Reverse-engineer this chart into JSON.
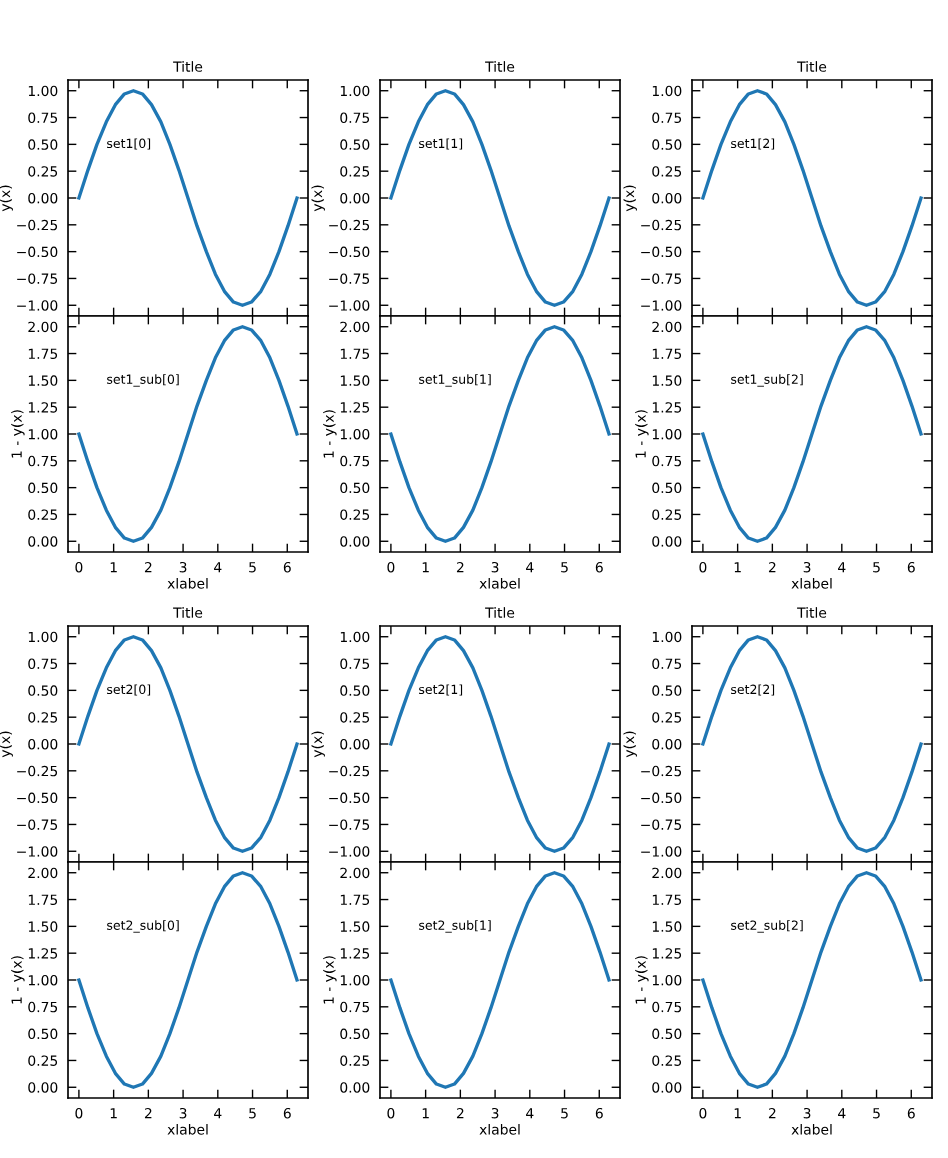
{
  "chart_data": [
    {
      "type": "line",
      "title": "Title",
      "ylabel": "y(x)",
      "annotations": [
        "set1[0]"
      ],
      "xlim": [
        -0.314,
        6.597
      ],
      "ylim": [
        -1.1,
        1.1
      ],
      "xticks": [
        0,
        1,
        2,
        3,
        4,
        5,
        6
      ],
      "yticks": [
        {
          "value": -1,
          "label": "−1.00"
        },
        {
          "value": -0.75,
          "label": "−0.75"
        },
        {
          "value": -0.5,
          "label": "−0.50"
        },
        {
          "value": -0.25,
          "label": "−0.25"
        },
        {
          "value": 0,
          "label": "0.00"
        },
        {
          "value": 0.25,
          "label": "0.25"
        },
        {
          "value": 0.5,
          "label": "0.50"
        },
        {
          "value": 0.75,
          "label": "0.75"
        },
        {
          "value": 1,
          "label": "1.00"
        }
      ],
      "tick_labels": "y",
      "x": [
        0,
        0.26,
        0.52,
        0.79,
        1.05,
        1.31,
        1.57,
        1.83,
        2.09,
        2.36,
        2.62,
        2.88,
        3.14,
        3.4,
        3.67,
        3.93,
        4.19,
        4.45,
        4.71,
        4.97,
        5.24,
        5.5,
        5.76,
        6.02,
        6.28
      ],
      "series": [
        {
          "color": "#1f77b4",
          "values": [
            0,
            0.26,
            0.5,
            0.71,
            0.87,
            0.97,
            1,
            0.97,
            0.87,
            0.71,
            0.5,
            0.26,
            0,
            -0.26,
            -0.5,
            -0.71,
            -0.87,
            -0.97,
            -1,
            -0.97,
            -0.87,
            -0.71,
            -0.5,
            -0.26,
            0
          ]
        }
      ]
    },
    {
      "type": "line",
      "title": "Title",
      "ylabel": "y(x)",
      "annotations": [
        "set1[1]"
      ],
      "xlim": [
        -0.314,
        6.597
      ],
      "ylim": [
        -1.1,
        1.1
      ],
      "xticks": [
        0,
        1,
        2,
        3,
        4,
        5,
        6
      ],
      "yticks": [
        {
          "value": -1,
          "label": "−1.00"
        },
        {
          "value": -0.75,
          "label": "−0.75"
        },
        {
          "value": -0.5,
          "label": "−0.50"
        },
        {
          "value": -0.25,
          "label": "−0.25"
        },
        {
          "value": 0,
          "label": "0.00"
        },
        {
          "value": 0.25,
          "label": "0.25"
        },
        {
          "value": 0.5,
          "label": "0.50"
        },
        {
          "value": 0.75,
          "label": "0.75"
        },
        {
          "value": 1,
          "label": "1.00"
        }
      ],
      "tick_labels": "y",
      "x": [
        0,
        0.26,
        0.52,
        0.79,
        1.05,
        1.31,
        1.57,
        1.83,
        2.09,
        2.36,
        2.62,
        2.88,
        3.14,
        3.4,
        3.67,
        3.93,
        4.19,
        4.45,
        4.71,
        4.97,
        5.24,
        5.5,
        5.76,
        6.02,
        6.28
      ],
      "series": [
        {
          "color": "#1f77b4",
          "values": [
            0,
            0.26,
            0.5,
            0.71,
            0.87,
            0.97,
            1,
            0.97,
            0.87,
            0.71,
            0.5,
            0.26,
            0,
            -0.26,
            -0.5,
            -0.71,
            -0.87,
            -0.97,
            -1,
            -0.97,
            -0.87,
            -0.71,
            -0.5,
            -0.26,
            0
          ]
        }
      ]
    },
    {
      "type": "line",
      "title": "Title",
      "ylabel": "y(x)",
      "annotations": [
        "set1[2]"
      ],
      "xlim": [
        -0.314,
        6.597
      ],
      "ylim": [
        -1.1,
        1.1
      ],
      "xticks": [
        0,
        1,
        2,
        3,
        4,
        5,
        6
      ],
      "yticks": [
        {
          "value": -1,
          "label": "−1.00"
        },
        {
          "value": -0.75,
          "label": "−0.75"
        },
        {
          "value": -0.5,
          "label": "−0.50"
        },
        {
          "value": -0.25,
          "label": "−0.25"
        },
        {
          "value": 0,
          "label": "0.00"
        },
        {
          "value": 0.25,
          "label": "0.25"
        },
        {
          "value": 0.5,
          "label": "0.50"
        },
        {
          "value": 0.75,
          "label": "0.75"
        },
        {
          "value": 1,
          "label": "1.00"
        }
      ],
      "tick_labels": "y",
      "x": [
        0,
        0.26,
        0.52,
        0.79,
        1.05,
        1.31,
        1.57,
        1.83,
        2.09,
        2.36,
        2.62,
        2.88,
        3.14,
        3.4,
        3.67,
        3.93,
        4.19,
        4.45,
        4.71,
        4.97,
        5.24,
        5.5,
        5.76,
        6.02,
        6.28
      ],
      "series": [
        {
          "color": "#1f77b4",
          "values": [
            0,
            0.26,
            0.5,
            0.71,
            0.87,
            0.97,
            1,
            0.97,
            0.87,
            0.71,
            0.5,
            0.26,
            0,
            -0.26,
            -0.5,
            -0.71,
            -0.87,
            -0.97,
            -1,
            -0.97,
            -0.87,
            -0.71,
            -0.5,
            -0.26,
            0
          ]
        }
      ]
    },
    {
      "type": "line",
      "xlabel": "xlabel",
      "ylabel": "1 - y(x)",
      "annotations": [
        "set1_sub[0]"
      ],
      "xlim": [
        -0.314,
        6.597
      ],
      "ylim": [
        -0.1,
        2.1
      ],
      "xticks": [
        0,
        1,
        2,
        3,
        4,
        5,
        6
      ],
      "yticks": [
        {
          "value": 0,
          "label": "0.00"
        },
        {
          "value": 0.25,
          "label": "0.25"
        },
        {
          "value": 0.5,
          "label": "0.50"
        },
        {
          "value": 0.75,
          "label": "0.75"
        },
        {
          "value": 1,
          "label": "1.00"
        },
        {
          "value": 1.25,
          "label": "1.25"
        },
        {
          "value": 1.5,
          "label": "1.50"
        },
        {
          "value": 1.75,
          "label": "1.75"
        },
        {
          "value": 2,
          "label": "2.00"
        }
      ],
      "x": [
        0,
        0.26,
        0.52,
        0.79,
        1.05,
        1.31,
        1.57,
        1.83,
        2.09,
        2.36,
        2.62,
        2.88,
        3.14,
        3.4,
        3.67,
        3.93,
        4.19,
        4.45,
        4.71,
        4.97,
        5.24,
        5.5,
        5.76,
        6.02,
        6.28
      ],
      "series": [
        {
          "color": "#1f77b4",
          "values": [
            1,
            0.74,
            0.5,
            0.29,
            0.13,
            0.03,
            0,
            0.03,
            0.13,
            0.29,
            0.5,
            0.74,
            1,
            1.26,
            1.5,
            1.71,
            1.87,
            1.97,
            2,
            1.97,
            1.87,
            1.71,
            1.5,
            1.26,
            1
          ]
        }
      ]
    },
    {
      "type": "line",
      "xlabel": "xlabel",
      "ylabel": "1 - y(x)",
      "annotations": [
        "set1_sub[1]"
      ],
      "xlim": [
        -0.314,
        6.597
      ],
      "ylim": [
        -0.1,
        2.1
      ],
      "xticks": [
        0,
        1,
        2,
        3,
        4,
        5,
        6
      ],
      "yticks": [
        {
          "value": 0,
          "label": "0.00"
        },
        {
          "value": 0.25,
          "label": "0.25"
        },
        {
          "value": 0.5,
          "label": "0.50"
        },
        {
          "value": 0.75,
          "label": "0.75"
        },
        {
          "value": 1,
          "label": "1.00"
        },
        {
          "value": 1.25,
          "label": "1.25"
        },
        {
          "value": 1.5,
          "label": "1.50"
        },
        {
          "value": 1.75,
          "label": "1.75"
        },
        {
          "value": 2,
          "label": "2.00"
        }
      ],
      "x": [
        0,
        0.26,
        0.52,
        0.79,
        1.05,
        1.31,
        1.57,
        1.83,
        2.09,
        2.36,
        2.62,
        2.88,
        3.14,
        3.4,
        3.67,
        3.93,
        4.19,
        4.45,
        4.71,
        4.97,
        5.24,
        5.5,
        5.76,
        6.02,
        6.28
      ],
      "series": [
        {
          "color": "#1f77b4",
          "values": [
            1,
            0.74,
            0.5,
            0.29,
            0.13,
            0.03,
            0,
            0.03,
            0.13,
            0.29,
            0.5,
            0.74,
            1,
            1.26,
            1.5,
            1.71,
            1.87,
            1.97,
            2,
            1.97,
            1.87,
            1.71,
            1.5,
            1.26,
            1
          ]
        }
      ]
    },
    {
      "type": "line",
      "xlabel": "xlabel",
      "ylabel": "1 - y(x)",
      "annotations": [
        "set1_sub[2]"
      ],
      "xlim": [
        -0.314,
        6.597
      ],
      "ylim": [
        -0.1,
        2.1
      ],
      "xticks": [
        0,
        1,
        2,
        3,
        4,
        5,
        6
      ],
      "yticks": [
        {
          "value": 0,
          "label": "0.00"
        },
        {
          "value": 0.25,
          "label": "0.25"
        },
        {
          "value": 0.5,
          "label": "0.50"
        },
        {
          "value": 0.75,
          "label": "0.75"
        },
        {
          "value": 1,
          "label": "1.00"
        },
        {
          "value": 1.25,
          "label": "1.25"
        },
        {
          "value": 1.5,
          "label": "1.50"
        },
        {
          "value": 1.75,
          "label": "1.75"
        },
        {
          "value": 2,
          "label": "2.00"
        }
      ],
      "x": [
        0,
        0.26,
        0.52,
        0.79,
        1.05,
        1.31,
        1.57,
        1.83,
        2.09,
        2.36,
        2.62,
        2.88,
        3.14,
        3.4,
        3.67,
        3.93,
        4.19,
        4.45,
        4.71,
        4.97,
        5.24,
        5.5,
        5.76,
        6.02,
        6.28
      ],
      "series": [
        {
          "color": "#1f77b4",
          "values": [
            1,
            0.74,
            0.5,
            0.29,
            0.13,
            0.03,
            0,
            0.03,
            0.13,
            0.29,
            0.5,
            0.74,
            1,
            1.26,
            1.5,
            1.71,
            1.87,
            1.97,
            2,
            1.97,
            1.87,
            1.71,
            1.5,
            1.26,
            1
          ]
        }
      ]
    },
    {
      "type": "line",
      "title": "Title",
      "ylabel": "y(x)",
      "annotations": [
        "set2[0]"
      ],
      "xlim": [
        -0.314,
        6.597
      ],
      "ylim": [
        -1.1,
        1.1
      ],
      "xticks": [
        0,
        1,
        2,
        3,
        4,
        5,
        6
      ],
      "yticks": [
        {
          "value": -1,
          "label": "−1.00"
        },
        {
          "value": -0.75,
          "label": "−0.75"
        },
        {
          "value": -0.5,
          "label": "−0.50"
        },
        {
          "value": -0.25,
          "label": "−0.25"
        },
        {
          "value": 0,
          "label": "0.00"
        },
        {
          "value": 0.25,
          "label": "0.25"
        },
        {
          "value": 0.5,
          "label": "0.50"
        },
        {
          "value": 0.75,
          "label": "0.75"
        },
        {
          "value": 1,
          "label": "1.00"
        }
      ],
      "tick_labels": "y",
      "x": [
        0,
        0.26,
        0.52,
        0.79,
        1.05,
        1.31,
        1.57,
        1.83,
        2.09,
        2.36,
        2.62,
        2.88,
        3.14,
        3.4,
        3.67,
        3.93,
        4.19,
        4.45,
        4.71,
        4.97,
        5.24,
        5.5,
        5.76,
        6.02,
        6.28
      ],
      "series": [
        {
          "color": "#1f77b4",
          "values": [
            0,
            0.26,
            0.5,
            0.71,
            0.87,
            0.97,
            1,
            0.97,
            0.87,
            0.71,
            0.5,
            0.26,
            0,
            -0.26,
            -0.5,
            -0.71,
            -0.87,
            -0.97,
            -1,
            -0.97,
            -0.87,
            -0.71,
            -0.5,
            -0.26,
            0
          ]
        }
      ]
    },
    {
      "type": "line",
      "title": "Title",
      "ylabel": "y(x)",
      "annotations": [
        "set2[1]"
      ],
      "xlim": [
        -0.314,
        6.597
      ],
      "ylim": [
        -1.1,
        1.1
      ],
      "xticks": [
        0,
        1,
        2,
        3,
        4,
        5,
        6
      ],
      "yticks": [
        {
          "value": -1,
          "label": "−1.00"
        },
        {
          "value": -0.75,
          "label": "−0.75"
        },
        {
          "value": -0.5,
          "label": "−0.50"
        },
        {
          "value": -0.25,
          "label": "−0.25"
        },
        {
          "value": 0,
          "label": "0.00"
        },
        {
          "value": 0.25,
          "label": "0.25"
        },
        {
          "value": 0.5,
          "label": "0.50"
        },
        {
          "value": 0.75,
          "label": "0.75"
        },
        {
          "value": 1,
          "label": "1.00"
        }
      ],
      "tick_labels": "y",
      "x": [
        0,
        0.26,
        0.52,
        0.79,
        1.05,
        1.31,
        1.57,
        1.83,
        2.09,
        2.36,
        2.62,
        2.88,
        3.14,
        3.4,
        3.67,
        3.93,
        4.19,
        4.45,
        4.71,
        4.97,
        5.24,
        5.5,
        5.76,
        6.02,
        6.28
      ],
      "series": [
        {
          "color": "#1f77b4",
          "values": [
            0,
            0.26,
            0.5,
            0.71,
            0.87,
            0.97,
            1,
            0.97,
            0.87,
            0.71,
            0.5,
            0.26,
            0,
            -0.26,
            -0.5,
            -0.71,
            -0.87,
            -0.97,
            -1,
            -0.97,
            -0.87,
            -0.71,
            -0.5,
            -0.26,
            0
          ]
        }
      ]
    },
    {
      "type": "line",
      "title": "Title",
      "ylabel": "y(x)",
      "annotations": [
        "set2[2]"
      ],
      "xlim": [
        -0.314,
        6.597
      ],
      "ylim": [
        -1.1,
        1.1
      ],
      "xticks": [
        0,
        1,
        2,
        3,
        4,
        5,
        6
      ],
      "yticks": [
        {
          "value": -1,
          "label": "−1.00"
        },
        {
          "value": -0.75,
          "label": "−0.75"
        },
        {
          "value": -0.5,
          "label": "−0.50"
        },
        {
          "value": -0.25,
          "label": "−0.25"
        },
        {
          "value": 0,
          "label": "0.00"
        },
        {
          "value": 0.25,
          "label": "0.25"
        },
        {
          "value": 0.5,
          "label": "0.50"
        },
        {
          "value": 0.75,
          "label": "0.75"
        },
        {
          "value": 1,
          "label": "1.00"
        }
      ],
      "tick_labels": "y",
      "x": [
        0,
        0.26,
        0.52,
        0.79,
        1.05,
        1.31,
        1.57,
        1.83,
        2.09,
        2.36,
        2.62,
        2.88,
        3.14,
        3.4,
        3.67,
        3.93,
        4.19,
        4.45,
        4.71,
        4.97,
        5.24,
        5.5,
        5.76,
        6.02,
        6.28
      ],
      "series": [
        {
          "color": "#1f77b4",
          "values": [
            0,
            0.26,
            0.5,
            0.71,
            0.87,
            0.97,
            1,
            0.97,
            0.87,
            0.71,
            0.5,
            0.26,
            0,
            -0.26,
            -0.5,
            -0.71,
            -0.87,
            -0.97,
            -1,
            -0.97,
            -0.87,
            -0.71,
            -0.5,
            -0.26,
            0
          ]
        }
      ]
    },
    {
      "type": "line",
      "xlabel": "xlabel",
      "ylabel": "1 - y(x)",
      "annotations": [
        "set2_sub[0]"
      ],
      "xlim": [
        -0.314,
        6.597
      ],
      "ylim": [
        -0.1,
        2.1
      ],
      "xticks": [
        0,
        1,
        2,
        3,
        4,
        5,
        6
      ],
      "yticks": [
        {
          "value": 0,
          "label": "0.00"
        },
        {
          "value": 0.25,
          "label": "0.25"
        },
        {
          "value": 0.5,
          "label": "0.50"
        },
        {
          "value": 0.75,
          "label": "0.75"
        },
        {
          "value": 1,
          "label": "1.00"
        },
        {
          "value": 1.25,
          "label": "1.25"
        },
        {
          "value": 1.5,
          "label": "1.50"
        },
        {
          "value": 1.75,
          "label": "1.75"
        },
        {
          "value": 2,
          "label": "2.00"
        }
      ],
      "x": [
        0,
        0.26,
        0.52,
        0.79,
        1.05,
        1.31,
        1.57,
        1.83,
        2.09,
        2.36,
        2.62,
        2.88,
        3.14,
        3.4,
        3.67,
        3.93,
        4.19,
        4.45,
        4.71,
        4.97,
        5.24,
        5.5,
        5.76,
        6.02,
        6.28
      ],
      "series": [
        {
          "color": "#1f77b4",
          "values": [
            1,
            0.74,
            0.5,
            0.29,
            0.13,
            0.03,
            0,
            0.03,
            0.13,
            0.29,
            0.5,
            0.74,
            1,
            1.26,
            1.5,
            1.71,
            1.87,
            1.97,
            2,
            1.97,
            1.87,
            1.71,
            1.5,
            1.26,
            1
          ]
        }
      ]
    },
    {
      "type": "line",
      "xlabel": "xlabel",
      "ylabel": "1 - y(x)",
      "annotations": [
        "set2_sub[1]"
      ],
      "xlim": [
        -0.314,
        6.597
      ],
      "ylim": [
        -0.1,
        2.1
      ],
      "xticks": [
        0,
        1,
        2,
        3,
        4,
        5,
        6
      ],
      "yticks": [
        {
          "value": 0,
          "label": "0.00"
        },
        {
          "value": 0.25,
          "label": "0.25"
        },
        {
          "value": 0.5,
          "label": "0.50"
        },
        {
          "value": 0.75,
          "label": "0.75"
        },
        {
          "value": 1,
          "label": "1.00"
        },
        {
          "value": 1.25,
          "label": "1.25"
        },
        {
          "value": 1.5,
          "label": "1.50"
        },
        {
          "value": 1.75,
          "label": "1.75"
        },
        {
          "value": 2,
          "label": "2.00"
        }
      ],
      "x": [
        0,
        0.26,
        0.52,
        0.79,
        1.05,
        1.31,
        1.57,
        1.83,
        2.09,
        2.36,
        2.62,
        2.88,
        3.14,
        3.4,
        3.67,
        3.93,
        4.19,
        4.45,
        4.71,
        4.97,
        5.24,
        5.5,
        5.76,
        6.02,
        6.28
      ],
      "series": [
        {
          "color": "#1f77b4",
          "values": [
            1,
            0.74,
            0.5,
            0.29,
            0.13,
            0.03,
            0,
            0.03,
            0.13,
            0.29,
            0.5,
            0.74,
            1,
            1.26,
            1.5,
            1.71,
            1.87,
            1.97,
            2,
            1.97,
            1.87,
            1.71,
            1.5,
            1.26,
            1
          ]
        }
      ]
    },
    {
      "type": "line",
      "xlabel": "xlabel",
      "ylabel": "1 - y(x)",
      "annotations": [
        "set2_sub[2]"
      ],
      "xlim": [
        -0.314,
        6.597
      ],
      "ylim": [
        -0.1,
        2.1
      ],
      "xticks": [
        0,
        1,
        2,
        3,
        4,
        5,
        6
      ],
      "yticks": [
        {
          "value": 0,
          "label": "0.00"
        },
        {
          "value": 0.25,
          "label": "0.25"
        },
        {
          "value": 0.5,
          "label": "0.50"
        },
        {
          "value": 0.75,
          "label": "0.75"
        },
        {
          "value": 1,
          "label": "1.00"
        },
        {
          "value": 1.25,
          "label": "1.25"
        },
        {
          "value": 1.5,
          "label": "1.50"
        },
        {
          "value": 1.75,
          "label": "1.75"
        },
        {
          "value": 2,
          "label": "2.00"
        }
      ],
      "x": [
        0,
        0.26,
        0.52,
        0.79,
        1.05,
        1.31,
        1.57,
        1.83,
        2.09,
        2.36,
        2.62,
        2.88,
        3.14,
        3.4,
        3.67,
        3.93,
        4.19,
        4.45,
        4.71,
        4.97,
        5.24,
        5.5,
        5.76,
        6.02,
        6.28
      ],
      "series": [
        {
          "color": "#1f77b4",
          "values": [
            1,
            0.74,
            0.5,
            0.29,
            0.13,
            0.03,
            0,
            0.03,
            0.13,
            0.29,
            0.5,
            0.74,
            1,
            1.26,
            1.5,
            1.71,
            1.87,
            1.97,
            2,
            1.97,
            1.87,
            1.71,
            1.5,
            1.26,
            1
          ]
        }
      ]
    }
  ]
}
